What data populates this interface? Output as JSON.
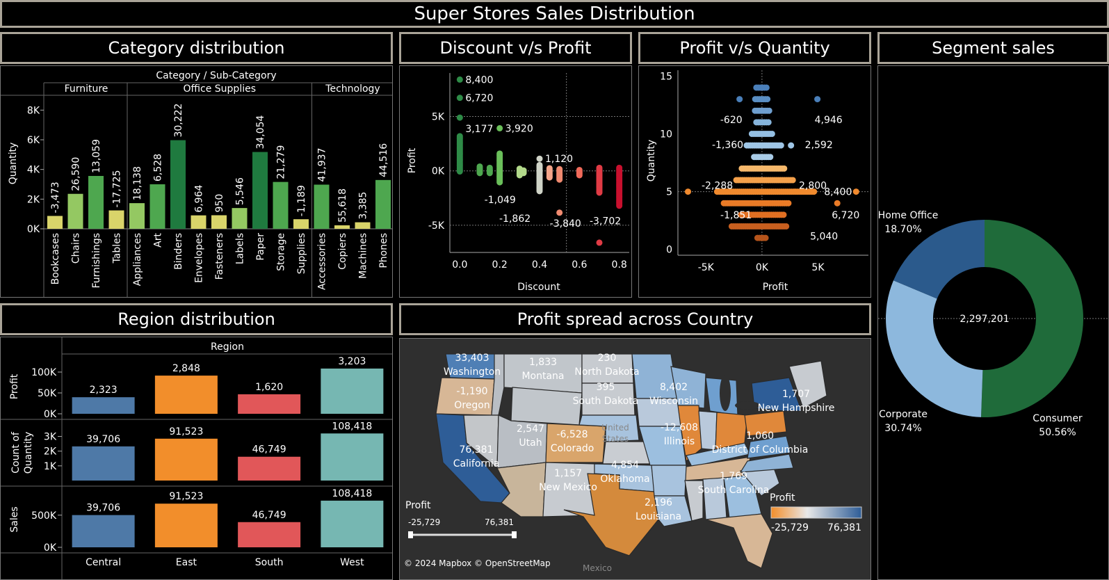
{
  "dashboard_title": "Super Stores Sales Distribution",
  "titles": {
    "category": "Category distribution",
    "discount": "Discount v/s Profit",
    "profitqty": "Profit v/s Quantity",
    "segment": "Segment sales",
    "region": "Region distribution",
    "map": "Profit spread across Country"
  },
  "colors": {
    "green_dark": "#1f7a3f",
    "green_mid": "#4ea74f",
    "green_light": "#94c862",
    "yellow": "#d9d46a",
    "blue": "#4e79a7",
    "orange": "#f28e2b",
    "red": "#e15759",
    "teal": "#76b7b2",
    "seg_consumer": "#1f6b3a",
    "seg_corporate": "#8db8dd",
    "seg_home": "#2b5a8c",
    "accent_border": "#aaa498"
  },
  "chart_data": [
    {
      "id": "category",
      "type": "bar",
      "header": "Category / Sub-Category",
      "ylabel": "Quantity",
      "yticks": [
        "0K",
        "2K",
        "4K",
        "6K",
        "8K"
      ],
      "ylim": [
        0,
        9000
      ],
      "groups": [
        {
          "name": "Furniture",
          "items": [
            {
              "cat": "Bookcases",
              "qty": 868,
              "label": "-3,473",
              "color": "yellow"
            },
            {
              "cat": "Chairs",
              "qty": 2356,
              "label": "26,590",
              "color": "green_light"
            },
            {
              "cat": "Furnishings",
              "qty": 3563,
              "label": "13,059",
              "color": "green_mid"
            },
            {
              "cat": "Tables",
              "qty": 1241,
              "label": "-17,725",
              "color": "yellow"
            }
          ]
        },
        {
          "name": "Office Supplies",
          "items": [
            {
              "cat": "Appliances",
              "qty": 1729,
              "label": "18,138",
              "color": "green_light"
            },
            {
              "cat": "Art",
              "qty": 3000,
              "label": "6,528",
              "color": "green_mid"
            },
            {
              "cat": "Binders",
              "qty": 5974,
              "label": "30,222",
              "color": "green_dark"
            },
            {
              "cat": "Envelopes",
              "qty": 906,
              "label": "6,964",
              "color": "yellow"
            },
            {
              "cat": "Fasteners",
              "qty": 914,
              "label": "950",
              "color": "yellow"
            },
            {
              "cat": "Labels",
              "qty": 1400,
              "label": "5,546",
              "color": "green_light"
            },
            {
              "cat": "Paper",
              "qty": 5178,
              "label": "34,054",
              "color": "green_dark"
            },
            {
              "cat": "Storage",
              "qty": 3158,
              "label": "21,279",
              "color": "green_mid"
            },
            {
              "cat": "Supplies",
              "qty": 647,
              "label": "-1,189",
              "color": "yellow"
            }
          ]
        },
        {
          "name": "Technology",
          "items": [
            {
              "cat": "Accessories",
              "qty": 2976,
              "label": "41,937",
              "color": "green_mid"
            },
            {
              "cat": "Copiers",
              "qty": 234,
              "label": "55,618",
              "color": "yellow"
            },
            {
              "cat": "Machines",
              "qty": 440,
              "label": "3,385",
              "color": "yellow"
            },
            {
              "cat": "Phones",
              "qty": 3289,
              "label": "44,516",
              "color": "green_mid"
            }
          ]
        }
      ]
    },
    {
      "id": "discount_profit",
      "type": "scatter",
      "xlabel": "Discount",
      "ylabel": "Profit",
      "xticks": [
        "0.0",
        "0.2",
        "0.4",
        "0.6",
        "0.8"
      ],
      "yticks": [
        "-5K",
        "0K",
        "5K"
      ],
      "xlim": [
        -0.05,
        0.85
      ],
      "ylim": [
        -7500,
        9000
      ],
      "labels": [
        {
          "x": 0.0,
          "y": 8400,
          "text": "8,400"
        },
        {
          "x": 0.0,
          "y": 6720,
          "text": "6,720"
        },
        {
          "x": 0.0,
          "y": 3177,
          "text": "3,177"
        },
        {
          "x": 0.2,
          "y": 3920,
          "text": "3,920"
        },
        {
          "x": 0.4,
          "y": 1120,
          "text": "1,120"
        },
        {
          "x": 0.2,
          "y": -1049,
          "text": "-1,049"
        },
        {
          "x": 0.4,
          "y": -1862,
          "text": "-1,862"
        },
        {
          "x": 0.5,
          "y": -3840,
          "text": "-3,840"
        },
        {
          "x": 0.7,
          "y": -3702,
          "text": "-3,702"
        }
      ],
      "columns": [
        {
          "x": 0.0,
          "min": -50,
          "max": 3300,
          "color": "#2e8b47",
          "extra": [
            8400,
            6720,
            4900
          ]
        },
        {
          "x": 0.1,
          "min": -200,
          "max": 400,
          "color": "#4ea74f",
          "extra": []
        },
        {
          "x": 0.15,
          "min": -200,
          "max": 300,
          "color": "#4ea74f",
          "extra": []
        },
        {
          "x": 0.2,
          "min": -1049,
          "max": 1600,
          "color": "#6abf5a",
          "extra": [
            3920
          ]
        },
        {
          "x": 0.3,
          "min": -400,
          "max": 300,
          "color": "#b2d98a",
          "extra": []
        },
        {
          "x": 0.32,
          "min": -200,
          "max": 100,
          "color": "#b2d98a",
          "extra": []
        },
        {
          "x": 0.4,
          "min": -1862,
          "max": 600,
          "color": "#cfd3c7",
          "extra": [
            1120
          ]
        },
        {
          "x": 0.45,
          "min": -600,
          "max": 300,
          "color": "#f4a58a",
          "extra": []
        },
        {
          "x": 0.5,
          "min": -800,
          "max": 200,
          "color": "#f08a70",
          "extra": [
            -3840
          ]
        },
        {
          "x": 0.6,
          "min": -400,
          "max": 100,
          "color": "#f06a5a",
          "extra": []
        },
        {
          "x": 0.7,
          "min": -2000,
          "max": 300,
          "color": "#e03b45",
          "extra": [
            -6600
          ]
        },
        {
          "x": 0.8,
          "min": -3200,
          "max": 300,
          "color": "#c8102e",
          "extra": []
        }
      ]
    },
    {
      "id": "profit_quantity",
      "type": "scatter",
      "xlabel": "Profit",
      "ylabel": "Quantity",
      "xticks": [
        "-5K",
        "0K",
        "5K"
      ],
      "yticks": [
        "0",
        "5",
        "10",
        "15"
      ],
      "xlim": [
        -7500,
        9500
      ],
      "ylim": [
        -0.5,
        15.5
      ],
      "labels": [
        {
          "x": -620,
          "y": 12,
          "text": "-620"
        },
        {
          "x": 4946,
          "y": 12,
          "text": "4,946"
        },
        {
          "x": -1360,
          "y": 9,
          "text": "-1,360"
        },
        {
          "x": 2592,
          "y": 9,
          "text": "2,592"
        },
        {
          "x": -2288,
          "y": 5.5,
          "text": "-2,288"
        },
        {
          "x": 2800,
          "y": 5.5,
          "text": "2,800"
        },
        {
          "x": 8400,
          "y": 5,
          "text": "8,400"
        },
        {
          "x": -1851,
          "y": 3,
          "text": "-1,851"
        },
        {
          "x": 6720,
          "y": 3,
          "text": "6,720"
        },
        {
          "x": 5040,
          "y": 2,
          "text": "5,040"
        }
      ],
      "rows": [
        {
          "q": 1,
          "min": -400,
          "max": 400,
          "color": "#b5541b"
        },
        {
          "q": 2,
          "min": -2700,
          "max": 2200,
          "color": "#c85f1f"
        },
        {
          "q": 3,
          "min": -1851,
          "max": 2000,
          "color": "#e06f22"
        },
        {
          "q": 4,
          "min": -3400,
          "max": 2500,
          "color": "#ea7b27"
        },
        {
          "q": 5,
          "min": -4000,
          "max": 4800,
          "color": "#f08a2e"
        },
        {
          "q": 6,
          "min": -2288,
          "max": 2800,
          "color": "#f4a04a"
        },
        {
          "q": 7,
          "min": -1800,
          "max": 2000,
          "color": "#f6b86b"
        },
        {
          "q": 8,
          "min": -700,
          "max": 800,
          "color": "#a9cbe6"
        },
        {
          "q": 9,
          "min": -1360,
          "max": 1800,
          "color": "#9fc6e6"
        },
        {
          "q": 10,
          "min": -900,
          "max": 900,
          "color": "#94bfe3"
        },
        {
          "q": 11,
          "min": -500,
          "max": 600,
          "color": "#86b4db"
        },
        {
          "q": 12,
          "min": -620,
          "max": 700,
          "color": "#6f9fcf"
        },
        {
          "q": 13,
          "min": -600,
          "max": 500,
          "color": "#5a8fc4"
        },
        {
          "q": 14,
          "min": -500,
          "max": 500,
          "color": "#4a7fb9"
        }
      ],
      "extra": [
        {
          "x": -6600,
          "y": 5,
          "color": "#f08a2e"
        },
        {
          "x": 8400,
          "y": 5,
          "color": "#f08a2e"
        },
        {
          "x": 6720,
          "y": 4,
          "color": "#ea7b27"
        },
        {
          "x": -2000,
          "y": 13,
          "color": "#4a7fb9"
        },
        {
          "x": 4946,
          "y": 13,
          "color": "#4a7fb9"
        },
        {
          "x": 2592,
          "y": 9,
          "color": "#9fc6e6"
        }
      ]
    },
    {
      "id": "segment",
      "type": "pie",
      "center_label": "2,297,201",
      "slices": [
        {
          "name": "Consumer",
          "pct": 50.56,
          "label": "50.56%",
          "color": "seg_consumer"
        },
        {
          "name": "Corporate",
          "pct": 30.74,
          "label": "30.74%",
          "color": "seg_corporate"
        },
        {
          "name": "Home Office",
          "pct": 18.7,
          "label": "18.70%",
          "color": "seg_home"
        }
      ]
    },
    {
      "id": "region",
      "type": "bar",
      "header": "Region",
      "categories": [
        "Central",
        "East",
        "South",
        "West"
      ],
      "bar_colors": [
        "blue",
        "orange",
        "red",
        "teal"
      ],
      "rows": [
        {
          "label": "Profit",
          "yticks": [
            "0K",
            "50K",
            "100K"
          ],
          "ylim": [
            0,
            120000
          ],
          "values": [
            39706,
            91523,
            46749,
            108418
          ],
          "labels": [
            "2,323",
            "2,848",
            "1,620",
            "3,203"
          ]
        },
        {
          "label": "Count of Quantity",
          "yticks": [
            "1K",
            "2K",
            "3K"
          ],
          "ylim": [
            0,
            3500
          ],
          "values": [
            2323,
            2848,
            1620,
            3203
          ],
          "labels": [
            "39,706",
            "91,523",
            "46,749",
            "108,418"
          ]
        },
        {
          "label": "Sales",
          "yticks": [
            "0K",
            "500K"
          ],
          "ylim": [
            0,
            800000
          ],
          "values": [
            501240,
            678781,
            391722,
            725458
          ],
          "labels": [
            "39,706",
            "91,523",
            "46,749",
            "108,418"
          ]
        }
      ]
    }
  ],
  "map": {
    "credit": "© 2024 Mapbox © OpenStreetMap",
    "legend_title": "Profit",
    "legend_min": "-25,729",
    "legend_max": "76,381",
    "filter_label": "Profit",
    "filter_min": "-25,729",
    "filter_max": "76,381",
    "country_label": "United States",
    "mexico_label": "Mexico",
    "state_labels": [
      {
        "name": "Washington",
        "value": "33,403"
      },
      {
        "name": "Oregon",
        "value": "-1,190"
      },
      {
        "name": "Montana",
        "value": "1,833"
      },
      {
        "name": "North Dakota",
        "value": "230"
      },
      {
        "name": "South Dakota",
        "value": "395"
      },
      {
        "name": "Wisconsin",
        "value": "8,402"
      },
      {
        "name": "New Hampshire",
        "value": "1,707"
      },
      {
        "name": "California",
        "value": "76,381"
      },
      {
        "name": "Utah",
        "value": "2,547"
      },
      {
        "name": "Colorado",
        "value": "-6,528"
      },
      {
        "name": "Illinois",
        "value": "-12,608"
      },
      {
        "name": "District of Columbia",
        "value": "1,060"
      },
      {
        "name": "New Mexico",
        "value": "1,157"
      },
      {
        "name": "Oklahoma",
        "value": "4,854"
      },
      {
        "name": "South Carolina",
        "value": "1,769"
      },
      {
        "name": "Louisiana",
        "value": "2,196"
      }
    ]
  }
}
